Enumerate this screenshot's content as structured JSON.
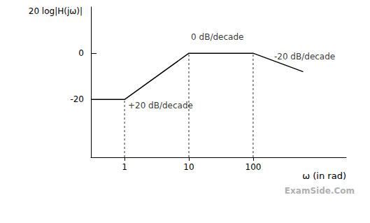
{
  "chart_data": {
    "type": "line",
    "x_label": "ω (in rad)",
    "y_label": "20 log|H(jω)|",
    "x": [
      0.3,
      1,
      10,
      100,
      600
    ],
    "values": [
      -20,
      -20,
      0,
      0,
      -8
    ],
    "color": "#000000",
    "log": "x",
    "xlim": [
      0.3,
      2800
    ],
    "xticks": [
      1,
      10,
      100
    ],
    "ylim": [
      -45,
      20
    ],
    "yticks": [
      -20,
      0
    ],
    "grid": false,
    "annotations": [
      {
        "text": "0 dB/decade",
        "x": 10.8,
        "y": 7
      },
      {
        "text": "+20 dB/decade",
        "x": 1.13,
        "y": -22.5
      },
      {
        "text": "-20 dB/decade",
        "x": 212,
        "y": -1.5
      }
    ],
    "watermark": "ExamSide.Com"
  }
}
